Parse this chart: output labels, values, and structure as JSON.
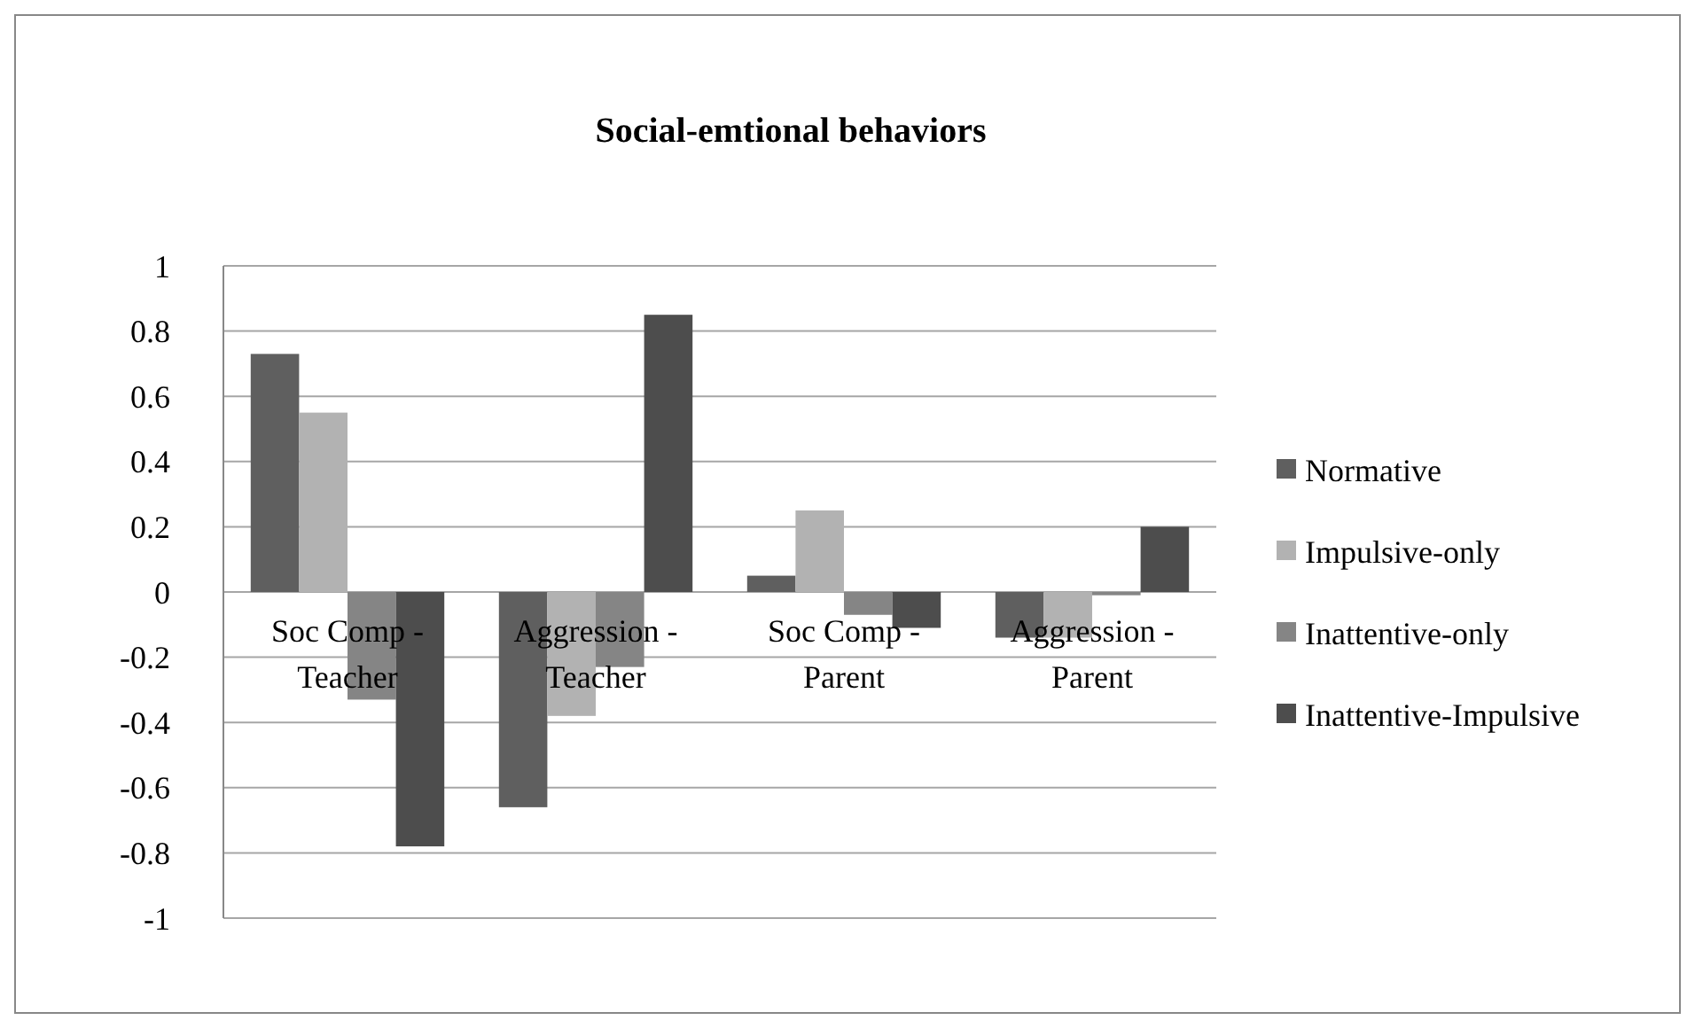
{
  "chart_data": {
    "type": "bar",
    "title": "Social-emtional behaviors",
    "categories": [
      "Soc Comp - Teacher",
      "Aggression - Teacher",
      "Soc Comp - Parent",
      "Aggression - Parent"
    ],
    "series": [
      {
        "name": "Normative",
        "color": "#5f5f5f",
        "values": [
          0.73,
          -0.66,
          0.05,
          -0.14
        ]
      },
      {
        "name": "Impulsive-only",
        "color": "#b2b2b2",
        "values": [
          0.55,
          -0.38,
          0.25,
          -0.14
        ]
      },
      {
        "name": "Inattentive-only",
        "color": "#858585",
        "values": [
          -0.33,
          -0.23,
          -0.07,
          -0.01
        ]
      },
      {
        "name": "Inattentive-Impulsive",
        "color": "#4d4d4d",
        "values": [
          -0.78,
          0.85,
          -0.11,
          0.2
        ]
      }
    ],
    "ylim": [
      -1,
      1
    ],
    "yticks": [
      -1,
      -0.8,
      -0.6,
      -0.4,
      -0.2,
      0,
      0.2,
      0.4,
      0.6,
      0.8,
      1
    ],
    "grid": "y",
    "legend": "right"
  }
}
